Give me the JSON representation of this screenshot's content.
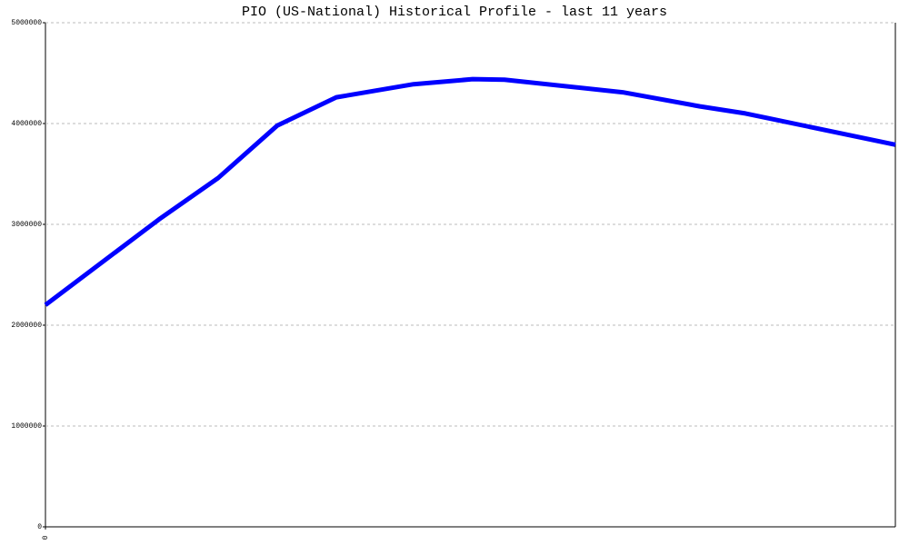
{
  "chart_data": {
    "type": "line",
    "title": "PIO (US-National) Historical Profile - last 11 years",
    "x": [
      0,
      125,
      190,
      255,
      320,
      405,
      470,
      505,
      635,
      720,
      770,
      935
    ],
    "series": [
      {
        "color": "#0000ff",
        "values": [
          2200000,
          3050000,
          3460000,
          3980000,
          4260000,
          4390000,
          4440000,
          4435000,
          4310000,
          4170000,
          4100000,
          3790000
        ]
      }
    ],
    "xlim": [
      0,
      935
    ],
    "xticks": [
      0
    ],
    "ylim": [
      0,
      5000000
    ],
    "yticks": [
      0,
      1000000,
      2000000,
      3000000,
      4000000,
      5000000
    ],
    "grid": true
  }
}
